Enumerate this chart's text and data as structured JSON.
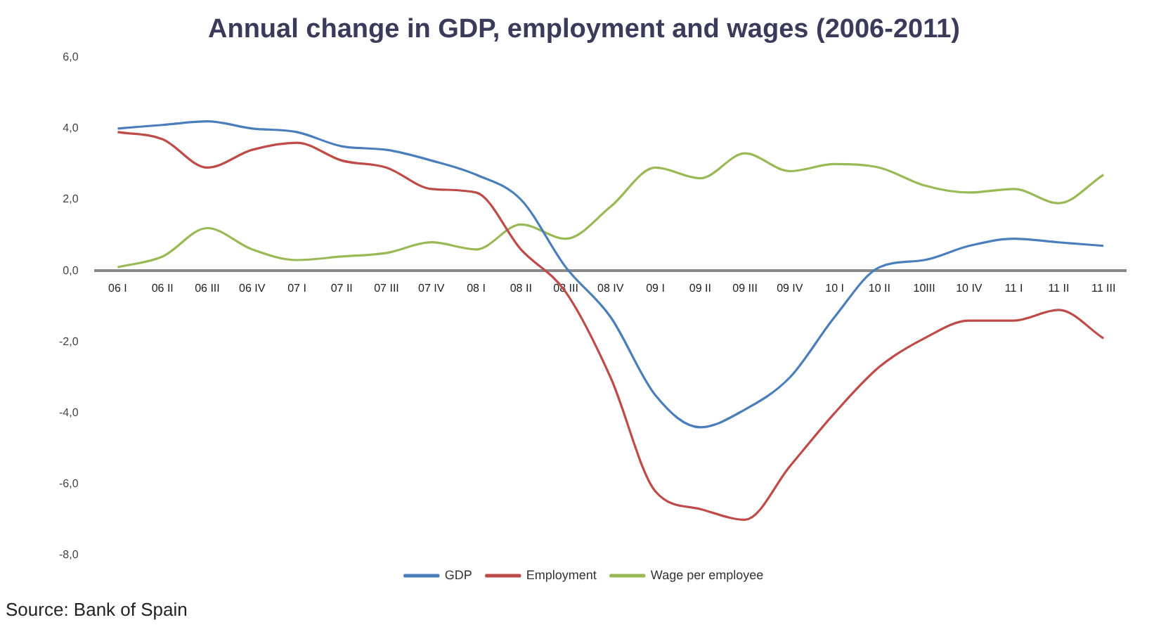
{
  "chart_data": {
    "type": "line",
    "title": "Annual change in GDP, employment and wages (2006-2011)",
    "categories": [
      "06 I",
      "06 II",
      "06 III",
      "06 IV",
      "07 I",
      "07 II",
      "07 III",
      "07 IV",
      "08 I",
      "08 II",
      "08 III",
      "08 IV",
      "09 I",
      "09 II",
      "09 III",
      "09 IV",
      "10 I",
      "10 II",
      "10III",
      "10 IV",
      "11 I",
      "11 II",
      "11 III"
    ],
    "series": [
      {
        "name": "GDP",
        "color": "#4a7ebb",
        "values": [
          4.0,
          4.1,
          4.2,
          4.0,
          3.9,
          3.5,
          3.4,
          3.1,
          2.7,
          2.0,
          0.1,
          -1.3,
          -3.5,
          -4.4,
          -3.9,
          -3.0,
          -1.3,
          0.1,
          0.3,
          0.7,
          0.9,
          0.8,
          0.7
        ]
      },
      {
        "name": "Employment",
        "color": "#be4b48",
        "values": [
          3.9,
          3.7,
          2.9,
          3.4,
          3.6,
          3.1,
          2.9,
          2.3,
          2.2,
          0.6,
          -0.6,
          -3.0,
          -6.2,
          -6.7,
          -7.0,
          -5.5,
          -4.0,
          -2.7,
          -1.9,
          -1.4,
          -1.4,
          -1.1,
          -1.9
        ]
      },
      {
        "name": "Wage per employee",
        "color": "#98b954",
        "values": [
          0.1,
          0.4,
          1.2,
          0.6,
          0.3,
          0.4,
          0.5,
          0.8,
          0.6,
          1.3,
          0.9,
          1.8,
          2.9,
          2.6,
          3.3,
          2.8,
          3.0,
          2.9,
          2.4,
          2.2,
          2.3,
          1.9,
          2.7
        ]
      }
    ],
    "ylim": [
      -8,
      6
    ],
    "yticks": [
      {
        "value": -8,
        "label": "-8,0"
      },
      {
        "value": -6,
        "label": "-6,0"
      },
      {
        "value": -4,
        "label": "-4,0"
      },
      {
        "value": -2,
        "label": "-2,0"
      },
      {
        "value": 0,
        "label": "0,0"
      },
      {
        "value": 2,
        "label": "2,0"
      },
      {
        "value": 4,
        "label": "4,0"
      },
      {
        "value": 6,
        "label": "6,0"
      }
    ],
    "legend": "bottom",
    "grid": false,
    "marker": "none",
    "line_style": "solid",
    "annotations": [
      "Source: Bank of Spain"
    ]
  }
}
